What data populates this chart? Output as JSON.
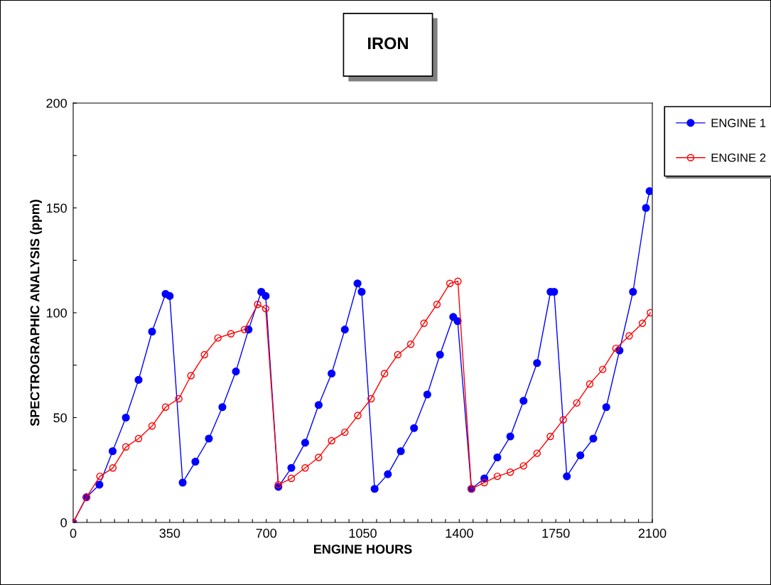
{
  "chart_data": {
    "type": "line",
    "title": "IRON",
    "xlabel": "ENGINE HOURS",
    "ylabel": "SPECTROGRAPHIC ANALYSIS (ppm)",
    "xlim": [
      0,
      2100
    ],
    "ylim": [
      0,
      200
    ],
    "xticks": [
      0,
      {
        "value": 50,
        "label": null
      },
      {
        "value": 100,
        "label": null
      },
      {
        "value": 150,
        "label": null
      },
      {
        "value": 200,
        "label": null
      },
      {
        "value": 250,
        "label": null
      },
      {
        "value": 300,
        "label": null
      },
      350,
      {
        "value": 400,
        "label": null
      },
      {
        "value": 450,
        "label": null
      },
      {
        "value": 500,
        "label": null
      },
      {
        "value": 550,
        "label": null
      },
      {
        "value": 600,
        "label": null
      },
      {
        "value": 650,
        "label": null
      },
      700,
      {
        "value": 750,
        "label": null
      },
      {
        "value": 800,
        "label": null
      },
      {
        "value": 850,
        "label": null
      },
      {
        "value": 900,
        "label": null
      },
      {
        "value": 950,
        "label": null
      },
      {
        "value": 1000,
        "label": null
      },
      1050,
      {
        "value": 1100,
        "label": null
      },
      {
        "value": 1150,
        "label": null
      },
      {
        "value": 1200,
        "label": null
      },
      {
        "value": 1250,
        "label": null
      },
      {
        "value": 1300,
        "label": null
      },
      {
        "value": 1350,
        "label": null
      },
      1400,
      {
        "value": 1450,
        "label": null
      },
      {
        "value": 1500,
        "label": null
      },
      {
        "value": 1550,
        "label": null
      },
      {
        "value": 1600,
        "label": null
      },
      {
        "value": 1650,
        "label": null
      },
      {
        "value": 1700,
        "label": null
      },
      1750,
      {
        "value": 1800,
        "label": null
      },
      {
        "value": 1850,
        "label": null
      },
      {
        "value": 1900,
        "label": null
      },
      {
        "value": 1950,
        "label": null
      },
      {
        "value": 2000,
        "label": null
      },
      {
        "value": 2050,
        "label": null
      },
      2100
    ],
    "yticks": [
      0,
      {
        "value": 25,
        "label": null
      },
      50,
      {
        "value": 75,
        "label": null
      },
      100,
      {
        "value": 125,
        "label": null
      },
      150,
      {
        "value": 175,
        "label": null
      },
      200
    ],
    "grid": false,
    "legend": "top right",
    "series": [
      {
        "name": "ENGINE 1",
        "color": "#0000ff",
        "marker": "circle",
        "x": [
          0,
          48,
          95,
          143,
          191,
          237,
          286,
          335,
          350,
          397,
          443,
          492,
          541,
          590,
          636,
          682,
          698,
          744,
          791,
          841,
          890,
          937,
          985,
          1031,
          1046,
          1093,
          1141,
          1188,
          1236,
          1284,
          1330,
          1378,
          1394,
          1444,
          1491,
          1538,
          1585,
          1633,
          1682,
          1731,
          1744,
          1790,
          1839,
          1886,
          1933,
          1981,
          2030,
          2077,
          2090
        ],
        "values": [
          0,
          12,
          18,
          34,
          50,
          68,
          91,
          109,
          108,
          19,
          29,
          40,
          55,
          72,
          92,
          110,
          108,
          17,
          26,
          38,
          56,
          71,
          92,
          114,
          110,
          16,
          23,
          34,
          45,
          61,
          80,
          98,
          96,
          16,
          21,
          31,
          41,
          58,
          76,
          110,
          110,
          22,
          32,
          40,
          55,
          82,
          110,
          150,
          158
        ]
      },
      {
        "name": "ENGINE 2",
        "color": "#ff0000",
        "marker": "circle",
        "x": [
          0,
          48,
          97,
          144,
          191,
          237,
          286,
          335,
          383,
          427,
          476,
          525,
          572,
          621,
          669,
          698,
          744,
          791,
          841,
          890,
          937,
          985,
          1032,
          1080,
          1129,
          1177,
          1224,
          1272,
          1319,
          1366,
          1395,
          1444,
          1491,
          1538,
          1585,
          1633,
          1682,
          1730,
          1777,
          1826,
          1873,
          1920,
          1968,
          2016,
          2064,
          2093
        ],
        "values": [
          0,
          12,
          22,
          26,
          36,
          40,
          46,
          55,
          59,
          70,
          80,
          88,
          90,
          92,
          104,
          102,
          18,
          21,
          26,
          31,
          39,
          43,
          51,
          59,
          71,
          80,
          85,
          95,
          104,
          114,
          115,
          16,
          19,
          22,
          24,
          27,
          33,
          41,
          49,
          57,
          66,
          73,
          83,
          89,
          95,
          100
        ]
      }
    ]
  }
}
